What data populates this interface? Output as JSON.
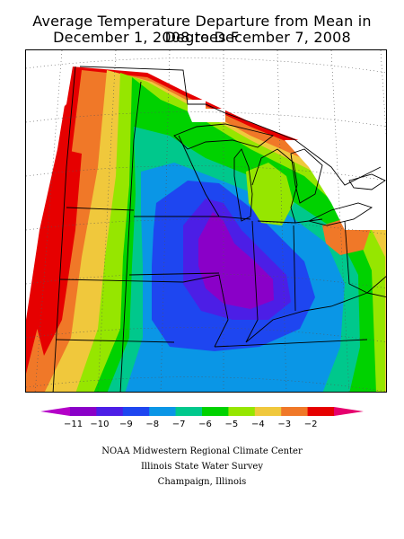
{
  "header": {
    "title": "Average Temperature Departure from Mean in Degrees F",
    "subtitle": "December 1, 2008 to December 7, 2008"
  },
  "legend": {
    "labels": [
      "-11",
      "-10",
      "-9",
      "-8",
      "-7",
      "-6",
      "-5",
      "-4",
      "-3",
      "-2"
    ],
    "colors": [
      "#8a00c8",
      "#4c1ee6",
      "#1e46f0",
      "#0a96e6",
      "#00c88c",
      "#00d200",
      "#96e600",
      "#f0c83c",
      "#f07828",
      "#e60000"
    ],
    "end_low_color": "#b400c8",
    "end_high_color": "#e6006e"
  },
  "credits": {
    "line1": "NOAA Midwestern Regional Climate Center",
    "line2": "Illinois State Water Survey",
    "line3": "Champaign, Illinois"
  },
  "map": {
    "region": "Midwestern United States",
    "period": "December 1-7, 2008",
    "note_blank": "no data (white)"
  }
}
